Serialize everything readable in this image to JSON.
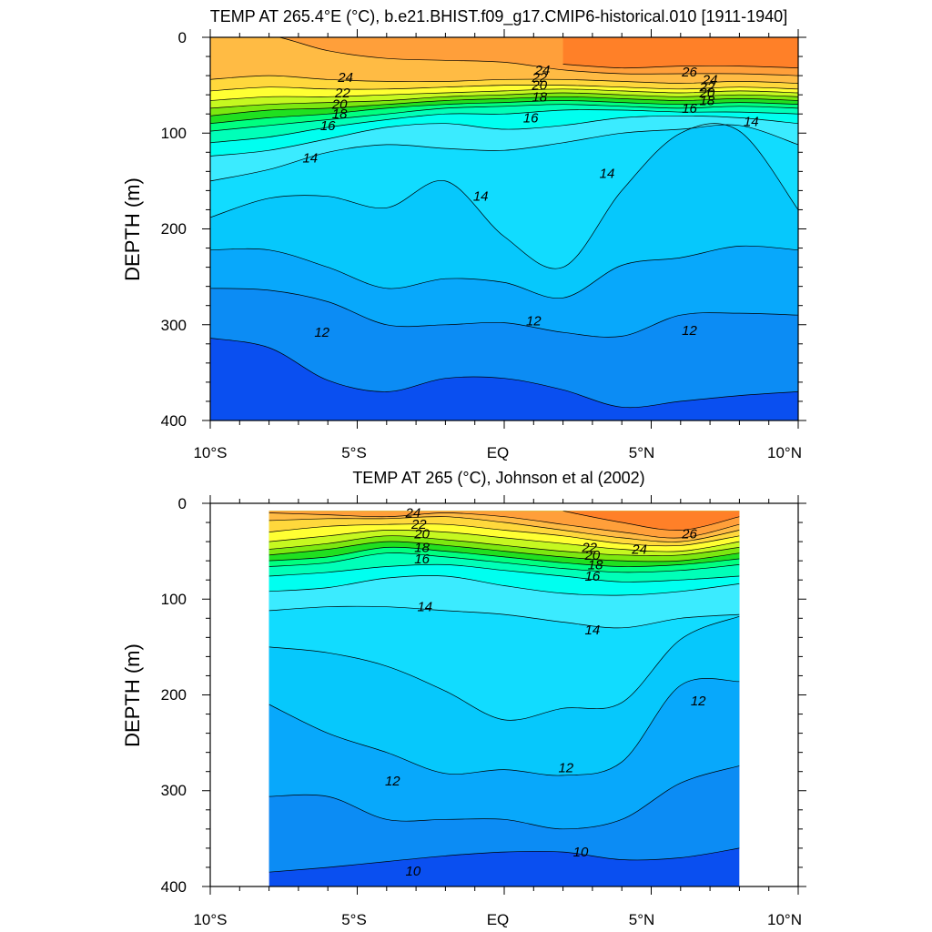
{
  "chart_data": [
    {
      "type": "contour",
      "title": "TEMP AT 265.4°E (°C), b.e21.BHIST.f09_g17.CMIP6-historical.010 [1911-1940]",
      "xlabel": "",
      "ylabel": "DEPTH (m)",
      "x_ticks": [
        "10°S",
        "5°S",
        "EQ",
        "5°N",
        "10°N"
      ],
      "y_ticks": [
        "0",
        "100",
        "200",
        "300",
        "400"
      ],
      "xlim": [
        -10,
        10
      ],
      "ylim": [
        400,
        0
      ],
      "y_reversed": true,
      "fill_levels_degC": [
        10,
        11,
        12,
        13,
        14,
        15,
        16,
        17,
        18,
        19,
        20,
        21,
        22,
        23,
        24,
        25,
        26,
        27
      ],
      "fill_colors": [
        "#0a4ff0",
        "#0c8cf4",
        "#08a8fb",
        "#06c8fc",
        "#11dcff",
        "#3bebff",
        "#00fff0",
        "#00ffb8",
        "#00ff80",
        "#20e020",
        "#7ce810",
        "#c6f820",
        "#ffff33",
        "#ffd83c",
        "#ffbb44",
        "#ff9f3a",
        "#ff8028",
        "#ff3c14"
      ],
      "isotherm_depths_m": {
        "x": [
          -10,
          -8,
          -6,
          -4,
          -2,
          0,
          2,
          4,
          6,
          8,
          10
        ],
        "t26": [
          null,
          null,
          null,
          null,
          null,
          null,
          28,
          32,
          30,
          30,
          32
        ],
        "t25": [
          -2,
          -2,
          14,
          22,
          24,
          26,
          34,
          38,
          38,
          38,
          40
        ],
        "t24": [
          44,
          40,
          44,
          46,
          46,
          44,
          44,
          46,
          48,
          46,
          48
        ],
        "t23": [
          56,
          52,
          54,
          54,
          52,
          50,
          50,
          52,
          54,
          52,
          54
        ],
        "t22": [
          66,
          62,
          62,
          60,
          58,
          56,
          54,
          56,
          58,
          56,
          58
        ],
        "t21": [
          74,
          70,
          68,
          66,
          62,
          60,
          58,
          60,
          62,
          60,
          62
        ],
        "t20": [
          82,
          76,
          74,
          70,
          66,
          64,
          62,
          64,
          66,
          64,
          66
        ],
        "t19": [
          90,
          84,
          80,
          74,
          70,
          68,
          66,
          68,
          70,
          68,
          70
        ],
        "t18": [
          98,
          92,
          86,
          80,
          74,
          72,
          70,
          72,
          74,
          72,
          74
        ],
        "t17": [
          110,
          104,
          94,
          86,
          80,
          80,
          76,
          76,
          78,
          78,
          80
        ],
        "t16": [
          124,
          118,
          106,
          94,
          90,
          96,
          92,
          84,
          82,
          84,
          90
        ],
        "t15": [
          150,
          138,
          120,
          112,
          116,
          118,
          110,
          100,
          96,
          92,
          112
        ],
        "t14": [
          188,
          168,
          166,
          178,
          150,
          208,
          240,
          160,
          100,
          98,
          180
        ],
        "t13": [
          222,
          222,
          240,
          262,
          252,
          256,
          272,
          238,
          230,
          218,
          222
        ],
        "t12": [
          262,
          264,
          276,
          300,
          300,
          298,
          308,
          312,
          290,
          288,
          290
        ],
        "t11": [
          314,
          324,
          358,
          370,
          356,
          356,
          368,
          386,
          380,
          374,
          370
        ],
        "t10": [
          378,
          396,
          412,
          420,
          420,
          420,
          420,
          420,
          420,
          420,
          420
        ]
      },
      "contour_labels": [
        {
          "text": "24",
          "x": -5.4,
          "y": 42
        },
        {
          "text": "22",
          "x": -5.5,
          "y": 58
        },
        {
          "text": "20",
          "x": -5.6,
          "y": 70
        },
        {
          "text": "18",
          "x": -5.6,
          "y": 80
        },
        {
          "text": "16",
          "x": -6.0,
          "y": 92
        },
        {
          "text": "14",
          "x": -6.6,
          "y": 126
        },
        {
          "text": "14",
          "x": -0.8,
          "y": 166
        },
        {
          "text": "14",
          "x": 3.5,
          "y": 142
        },
        {
          "text": "12",
          "x": -6.2,
          "y": 308
        },
        {
          "text": "12",
          "x": 1.0,
          "y": 296
        },
        {
          "text": "12",
          "x": 6.3,
          "y": 306
        },
        {
          "text": "24",
          "x": 1.3,
          "y": 34
        },
        {
          "text": "22",
          "x": 1.2,
          "y": 42
        },
        {
          "text": "20",
          "x": 1.2,
          "y": 50
        },
        {
          "text": "18",
          "x": 1.2,
          "y": 62
        },
        {
          "text": "16",
          "x": 0.9,
          "y": 84
        },
        {
          "text": "26",
          "x": 6.3,
          "y": 36
        },
        {
          "text": "24",
          "x": 7.0,
          "y": 44
        },
        {
          "text": "22",
          "x": 6.9,
          "y": 52
        },
        {
          "text": "20",
          "x": 6.9,
          "y": 58
        },
        {
          "text": "18",
          "x": 6.9,
          "y": 66
        },
        {
          "text": "16",
          "x": 6.3,
          "y": 74
        },
        {
          "text": "14",
          "x": 8.4,
          "y": 88
        }
      ]
    },
    {
      "type": "contour",
      "title": "TEMP AT 265 (°C), Johnson et al (2002)",
      "xlabel": "",
      "ylabel": "DEPTH (m)",
      "x_ticks": [
        "10°S",
        "5°S",
        "EQ",
        "5°N",
        "10°N"
      ],
      "y_ticks": [
        "0",
        "100",
        "200",
        "300",
        "400"
      ],
      "xlim": [
        -10,
        10
      ],
      "ylim": [
        400,
        0
      ],
      "y_reversed": true,
      "data_extent_x": [
        -8,
        8
      ],
      "data_extent_depth": [
        8,
        400
      ],
      "fill_levels_degC": [
        10,
        11,
        12,
        13,
        14,
        15,
        16,
        17,
        18,
        19,
        20,
        21,
        22,
        23,
        24,
        25,
        26,
        27
      ],
      "fill_colors": [
        "#0a4ff0",
        "#0c8cf4",
        "#08a8fb",
        "#06c8fc",
        "#11dcff",
        "#3bebff",
        "#00fff0",
        "#00ffb8",
        "#00ff80",
        "#20e020",
        "#7ce810",
        "#c6f820",
        "#ffff33",
        "#ffd83c",
        "#ffbb44",
        "#ff9f3a",
        "#ff8028",
        "#ff3c14"
      ],
      "isotherm_depths_m": {
        "x": [
          -8,
          -6,
          -4,
          -2,
          0,
          2,
          4,
          6,
          8
        ],
        "t26": [
          null,
          null,
          null,
          null,
          null,
          8,
          20,
          28,
          14
        ],
        "t25": [
          10,
          12,
          14,
          10,
          14,
          22,
          30,
          36,
          22
        ],
        "t24": [
          18,
          16,
          16,
          14,
          20,
          28,
          36,
          40,
          28
        ],
        "t23": [
          30,
          24,
          22,
          22,
          28,
          34,
          42,
          44,
          34
        ],
        "t22": [
          40,
          34,
          28,
          30,
          36,
          42,
          48,
          50,
          40
        ],
        "t21": [
          48,
          42,
          34,
          38,
          44,
          50,
          54,
          54,
          46
        ],
        "t20": [
          54,
          48,
          40,
          44,
          50,
          56,
          60,
          60,
          52
        ],
        "t19": [
          60,
          56,
          46,
          50,
          56,
          62,
          66,
          64,
          58
        ],
        "t18": [
          66,
          62,
          52,
          56,
          62,
          68,
          72,
          70,
          64
        ],
        "t17": [
          76,
          72,
          66,
          64,
          70,
          76,
          82,
          80,
          76
        ],
        "t16": [
          92,
          88,
          78,
          76,
          86,
          94,
          96,
          92,
          84
        ],
        "t15": [
          112,
          108,
          108,
          112,
          116,
          124,
          130,
          120,
          116
        ],
        "t14": [
          150,
          156,
          170,
          196,
          226,
          214,
          208,
          142,
          118
        ],
        "t13": [
          210,
          240,
          260,
          282,
          278,
          284,
          270,
          190,
          186
        ],
        "t12": [
          306,
          306,
          330,
          330,
          330,
          340,
          330,
          292,
          274
        ],
        "t11": [
          385,
          380,
          374,
          368,
          364,
          364,
          372,
          370,
          360
        ]
      },
      "contour_labels": [
        {
          "text": "24",
          "x": -3.1,
          "y": 10
        },
        {
          "text": "22",
          "x": -2.9,
          "y": 22
        },
        {
          "text": "20",
          "x": -2.8,
          "y": 32
        },
        {
          "text": "18",
          "x": -2.8,
          "y": 46
        },
        {
          "text": "16",
          "x": -2.8,
          "y": 58
        },
        {
          "text": "14",
          "x": -2.7,
          "y": 108
        },
        {
          "text": "14",
          "x": 3.0,
          "y": 132
        },
        {
          "text": "22",
          "x": 2.9,
          "y": 46
        },
        {
          "text": "20",
          "x": 3.0,
          "y": 54
        },
        {
          "text": "18",
          "x": 3.1,
          "y": 64
        },
        {
          "text": "16",
          "x": 3.0,
          "y": 76
        },
        {
          "text": "24",
          "x": 4.6,
          "y": 48
        },
        {
          "text": "26",
          "x": 6.3,
          "y": 32
        },
        {
          "text": "12",
          "x": 6.6,
          "y": 206
        },
        {
          "text": "12",
          "x": 2.1,
          "y": 276
        },
        {
          "text": "12",
          "x": -3.8,
          "y": 290
        },
        {
          "text": "10",
          "x": -3.1,
          "y": 384
        },
        {
          "text": "10",
          "x": 2.6,
          "y": 364
        }
      ]
    }
  ]
}
